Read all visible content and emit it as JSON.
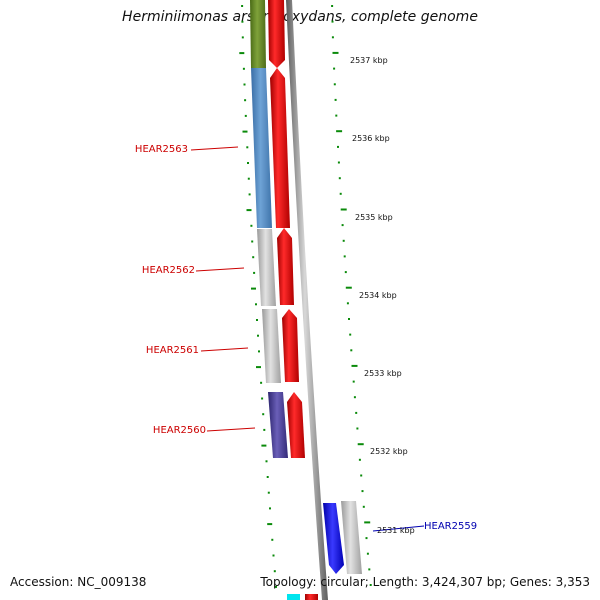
{
  "title": "Herminiimonas arsenicoxydans, complete genome",
  "footer": {
    "accession": "Accession: NC_009138",
    "topology": "Topology: circular; Length: 3,424,307 bp; Genes: 3,353"
  },
  "colors": {
    "red_strand": "#e80000",
    "olive": "#6b8e23",
    "steel_blue": "#4f86c0",
    "grey": "#b8b8b8",
    "indigo": "#4a3f8f",
    "blue": "#1414e6",
    "cyan": "#00e5ee",
    "tick_green": "#0a8a0a",
    "label_red": "#cc0000",
    "label_blue": "#0000b0",
    "backbone": "#9a9a9a"
  },
  "scale_labels": [
    "2537 kbp",
    "2536 kbp",
    "2535 kbp",
    "2534 kbp",
    "2533 kbp",
    "2532 kbp",
    "2531 kbp"
  ],
  "genes": [
    {
      "name": "HEAR2563",
      "strand": "left",
      "color": "red"
    },
    {
      "name": "HEAR2562",
      "strand": "left",
      "color": "red"
    },
    {
      "name": "HEAR2561",
      "strand": "left",
      "color": "red"
    },
    {
      "name": "HEAR2560",
      "strand": "left",
      "color": "red"
    },
    {
      "name": "HEAR2559",
      "strand": "right",
      "color": "blue"
    }
  ]
}
